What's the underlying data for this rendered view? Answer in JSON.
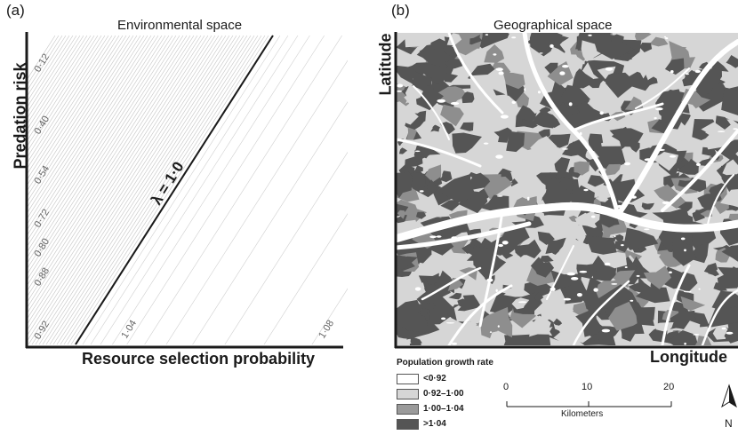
{
  "panel_a": {
    "letter": "(a)",
    "title": "Environmental space",
    "y_axis_label": "Predation risk",
    "x_axis_label": "Resource selection probability",
    "lambda_label": "λ = 1·0",
    "contour_labels": [
      "0·12",
      "0·40",
      "0·54",
      "0·72",
      "0·80",
      "0·88",
      "0·92",
      "1·04",
      "1·08"
    ]
  },
  "panel_b": {
    "letter": "(b)",
    "title": "Geographical space",
    "y_axis_label": "Latitude",
    "x_axis_label": "Longitude"
  },
  "legend": {
    "title": "Population growth rate",
    "items": [
      {
        "label": "<0·92",
        "color": "#ffffff"
      },
      {
        "label": "0·92–1·00",
        "color": "#d6d6d6"
      },
      {
        "label": "1·00–1·04",
        "color": "#9a9a9a"
      },
      {
        "label": ">1·04",
        "color": "#555555"
      }
    ]
  },
  "scale_bar": {
    "ticks": [
      "0",
      "10",
      "20"
    ],
    "unit": "Kilometers"
  },
  "north_arrow": {
    "label": "N"
  },
  "colors": {
    "map_light": "#d6d6d6",
    "map_dark": "#555555",
    "river": "#ffffff"
  }
}
